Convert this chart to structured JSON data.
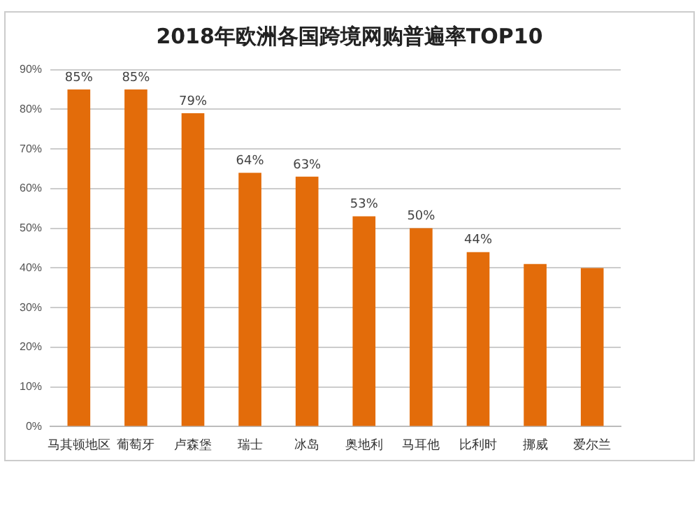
{
  "chart_data": {
    "type": "bar",
    "title": "2018年欧洲各国跨境网购普遍率TOP10",
    "categories": [
      "马其顿地区",
      "葡萄牙",
      "卢森堡",
      "瑞士",
      "冰岛",
      "奥地利",
      "马耳他",
      "比利时",
      "挪威",
      "爱尔兰"
    ],
    "values": [
      85,
      85,
      79,
      64,
      63,
      53,
      50,
      44,
      41,
      40
    ],
    "value_labels": [
      "85%",
      "85%",
      "79%",
      "64%",
      "63%",
      "53%",
      "50%",
      "44%",
      null,
      null
    ],
    "color": "#e36c0a",
    "ylim": [
      0,
      90
    ],
    "yticks": [
      {
        "value": 0,
        "label": "0%"
      },
      {
        "value": 10,
        "label": "10%"
      },
      {
        "value": 20,
        "label": "20%"
      },
      {
        "value": 30,
        "label": "30%"
      },
      {
        "value": 40,
        "label": "40%"
      },
      {
        "value": 50,
        "label": "50%"
      },
      {
        "value": 60,
        "label": "60%"
      },
      {
        "value": 70,
        "label": "70%"
      },
      {
        "value": 80,
        "label": "80%"
      },
      {
        "value": 90,
        "label": "90%"
      }
    ],
    "grid": "y",
    "legend": false
  }
}
